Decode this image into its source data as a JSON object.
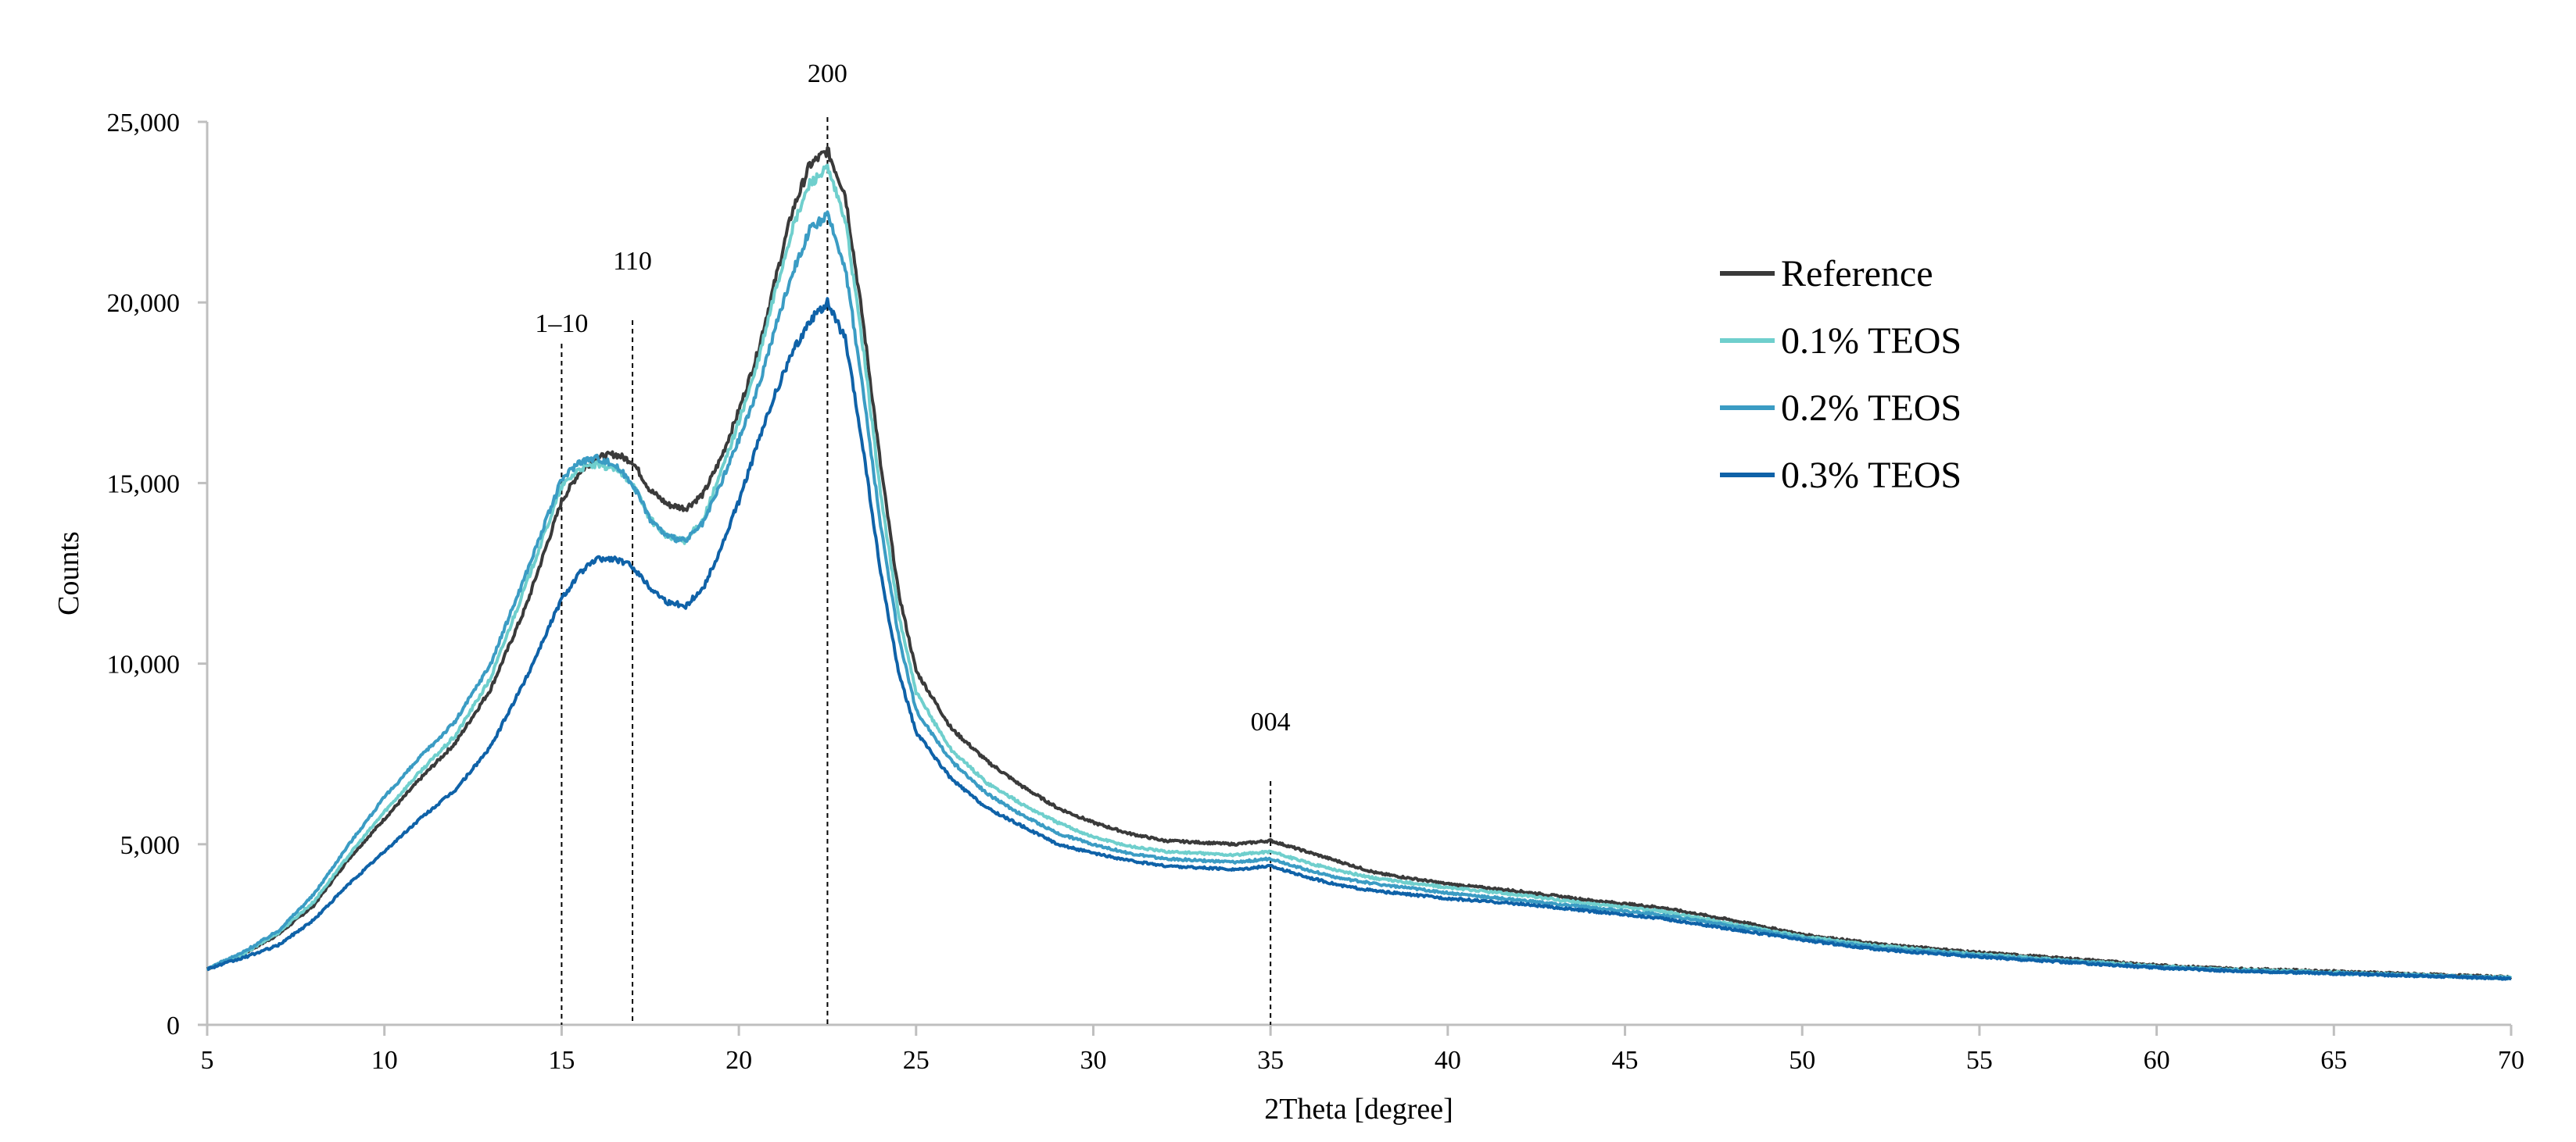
{
  "chart_data": {
    "type": "line",
    "title": "",
    "xlabel": "2Theta [degree]",
    "ylabel": "Counts",
    "xlim": [
      5,
      70
    ],
    "ylim": [
      0,
      25000
    ],
    "x_ticks": [
      5,
      10,
      15,
      20,
      25,
      30,
      35,
      40,
      45,
      50,
      55,
      60,
      65,
      70
    ],
    "x_tick_labels": [
      "5",
      "10",
      "15",
      "20",
      "25",
      "30",
      "35",
      "40",
      "45",
      "50",
      "55",
      "60",
      "65",
      "70"
    ],
    "y_ticks": [
      0,
      5000,
      10000,
      15000,
      20000,
      25000
    ],
    "y_tick_labels": [
      "0",
      "5,000",
      "10,000",
      "15,000",
      "20,000",
      "25,000"
    ],
    "grid": false,
    "legend_position": "top-right",
    "annotations": [
      {
        "label": "1–10",
        "x": 15
      },
      {
        "label": "110",
        "x": 17
      },
      {
        "label": "200",
        "x": 22.5
      },
      {
        "label": "004",
        "x": 35
      }
    ],
    "series": [
      {
        "name": "Reference",
        "color": "#3a3a3a",
        "points": [
          [
            5,
            1550
          ],
          [
            6,
            1950
          ],
          [
            7,
            2500
          ],
          [
            8,
            3300
          ],
          [
            9,
            4600
          ],
          [
            10,
            5700
          ],
          [
            11,
            6800
          ],
          [
            12,
            7800
          ],
          [
            13,
            9300
          ],
          [
            14,
            11600
          ],
          [
            15,
            14500
          ],
          [
            15.5,
            15300
          ],
          [
            16,
            15700
          ],
          [
            16.5,
            15800
          ],
          [
            17,
            15600
          ],
          [
            17.5,
            14800
          ],
          [
            18,
            14400
          ],
          [
            18.5,
            14300
          ],
          [
            19,
            14700
          ],
          [
            19.5,
            15700
          ],
          [
            20,
            17000
          ],
          [
            20.5,
            18500
          ],
          [
            21,
            20500
          ],
          [
            21.5,
            22500
          ],
          [
            22,
            23800
          ],
          [
            22.5,
            24200
          ],
          [
            23,
            23000
          ],
          [
            23.5,
            19500
          ],
          [
            24,
            15500
          ],
          [
            24.5,
            12000
          ],
          [
            25,
            9800
          ],
          [
            26,
            8200
          ],
          [
            27,
            7300
          ],
          [
            28,
            6600
          ],
          [
            29,
            6000
          ],
          [
            30,
            5600
          ],
          [
            31,
            5300
          ],
          [
            32,
            5100
          ],
          [
            33,
            5050
          ],
          [
            34,
            5000
          ],
          [
            35,
            5100
          ],
          [
            36,
            4800
          ],
          [
            37,
            4500
          ],
          [
            38,
            4200
          ],
          [
            40,
            3900
          ],
          [
            42,
            3700
          ],
          [
            44,
            3450
          ],
          [
            46,
            3250
          ],
          [
            48,
            2900
          ],
          [
            50,
            2500
          ],
          [
            52,
            2250
          ],
          [
            55,
            2000
          ],
          [
            58,
            1800
          ],
          [
            60,
            1650
          ],
          [
            62,
            1560
          ],
          [
            65,
            1480
          ],
          [
            68,
            1380
          ],
          [
            70,
            1320
          ]
        ]
      },
      {
        "name": "0.1% TEOS",
        "color": "#6fcfcd",
        "points": [
          [
            5,
            1550
          ],
          [
            6,
            1950
          ],
          [
            7,
            2550
          ],
          [
            8,
            3400
          ],
          [
            9,
            4700
          ],
          [
            10,
            5900
          ],
          [
            11,
            7000
          ],
          [
            12,
            8000
          ],
          [
            13,
            9600
          ],
          [
            14,
            12200
          ],
          [
            15,
            14900
          ],
          [
            15.5,
            15400
          ],
          [
            16,
            15500
          ],
          [
            16.5,
            15400
          ],
          [
            17,
            15000
          ],
          [
            17.5,
            14000
          ],
          [
            18,
            13500
          ],
          [
            18.5,
            13400
          ],
          [
            19,
            14000
          ],
          [
            19.5,
            15300
          ],
          [
            20,
            16700
          ],
          [
            20.5,
            18200
          ],
          [
            21,
            20200
          ],
          [
            21.5,
            22000
          ],
          [
            22,
            23300
          ],
          [
            22.5,
            23700
          ],
          [
            23,
            22300
          ],
          [
            23.5,
            18800
          ],
          [
            24,
            14700
          ],
          [
            24.5,
            11400
          ],
          [
            25,
            9200
          ],
          [
            26,
            7600
          ],
          [
            27,
            6700
          ],
          [
            28,
            6100
          ],
          [
            29,
            5600
          ],
          [
            30,
            5200
          ],
          [
            31,
            4950
          ],
          [
            32,
            4800
          ],
          [
            33,
            4750
          ],
          [
            34,
            4700
          ],
          [
            35,
            4800
          ],
          [
            36,
            4500
          ],
          [
            37,
            4250
          ],
          [
            38,
            4050
          ],
          [
            40,
            3800
          ],
          [
            42,
            3600
          ],
          [
            44,
            3350
          ],
          [
            46,
            3150
          ],
          [
            48,
            2800
          ],
          [
            50,
            2450
          ],
          [
            52,
            2200
          ],
          [
            55,
            1950
          ],
          [
            58,
            1750
          ],
          [
            60,
            1620
          ],
          [
            62,
            1530
          ],
          [
            65,
            1450
          ],
          [
            68,
            1360
          ],
          [
            70,
            1300
          ]
        ]
      },
      {
        "name": "0.2% TEOS",
        "color": "#3b9cc4",
        "points": [
          [
            5,
            1550
          ],
          [
            6,
            2000
          ],
          [
            7,
            2600
          ],
          [
            8,
            3600
          ],
          [
            9,
            5000
          ],
          [
            10,
            6300
          ],
          [
            11,
            7400
          ],
          [
            12,
            8400
          ],
          [
            13,
            10000
          ],
          [
            14,
            12500
          ],
          [
            15,
            15100
          ],
          [
            15.5,
            15600
          ],
          [
            16,
            15700
          ],
          [
            16.5,
            15500
          ],
          [
            17,
            15000
          ],
          [
            17.5,
            14000
          ],
          [
            18,
            13500
          ],
          [
            18.5,
            13400
          ],
          [
            19,
            13900
          ],
          [
            19.5,
            15000
          ],
          [
            20,
            16200
          ],
          [
            20.5,
            17500
          ],
          [
            21,
            19200
          ],
          [
            21.5,
            20800
          ],
          [
            22,
            22000
          ],
          [
            22.5,
            22400
          ],
          [
            23,
            21000
          ],
          [
            23.5,
            17600
          ],
          [
            24,
            13800
          ],
          [
            24.5,
            10800
          ],
          [
            25,
            8700
          ],
          [
            26,
            7300
          ],
          [
            27,
            6400
          ],
          [
            28,
            5800
          ],
          [
            29,
            5300
          ],
          [
            30,
            5000
          ],
          [
            31,
            4750
          ],
          [
            32,
            4600
          ],
          [
            33,
            4550
          ],
          [
            34,
            4500
          ],
          [
            35,
            4600
          ],
          [
            36,
            4300
          ],
          [
            37,
            4050
          ],
          [
            38,
            3900
          ],
          [
            40,
            3650
          ],
          [
            42,
            3450
          ],
          [
            44,
            3250
          ],
          [
            46,
            3050
          ],
          [
            48,
            2750
          ],
          [
            50,
            2400
          ],
          [
            52,
            2150
          ],
          [
            55,
            1920
          ],
          [
            58,
            1730
          ],
          [
            60,
            1600
          ],
          [
            62,
            1510
          ],
          [
            65,
            1430
          ],
          [
            68,
            1350
          ],
          [
            70,
            1290
          ]
        ]
      },
      {
        "name": "0.3% TEOS",
        "color": "#0f62a8",
        "points": [
          [
            5,
            1550
          ],
          [
            6,
            1850
          ],
          [
            7,
            2200
          ],
          [
            8,
            2900
          ],
          [
            9,
            3900
          ],
          [
            10,
            4800
          ],
          [
            11,
            5700
          ],
          [
            12,
            6500
          ],
          [
            13,
            7700
          ],
          [
            14,
            9600
          ],
          [
            15,
            11800
          ],
          [
            15.5,
            12500
          ],
          [
            16,
            12900
          ],
          [
            16.5,
            12900
          ],
          [
            17,
            12700
          ],
          [
            17.5,
            12100
          ],
          [
            18,
            11700
          ],
          [
            18.5,
            11600
          ],
          [
            19,
            12100
          ],
          [
            19.5,
            13200
          ],
          [
            20,
            14500
          ],
          [
            20.5,
            16000
          ],
          [
            21,
            17400
          ],
          [
            21.5,
            18600
          ],
          [
            22,
            19500
          ],
          [
            22.5,
            20000
          ],
          [
            23,
            19000
          ],
          [
            23.5,
            16000
          ],
          [
            24,
            12500
          ],
          [
            24.5,
            9800
          ],
          [
            25,
            8100
          ],
          [
            26,
            6800
          ],
          [
            27,
            6000
          ],
          [
            28,
            5500
          ],
          [
            29,
            5000
          ],
          [
            30,
            4750
          ],
          [
            31,
            4550
          ],
          [
            32,
            4400
          ],
          [
            33,
            4350
          ],
          [
            34,
            4300
          ],
          [
            35,
            4400
          ],
          [
            36,
            4100
          ],
          [
            37,
            3850
          ],
          [
            38,
            3700
          ],
          [
            40,
            3500
          ],
          [
            42,
            3350
          ],
          [
            44,
            3150
          ],
          [
            46,
            2950
          ],
          [
            48,
            2650
          ],
          [
            50,
            2350
          ],
          [
            52,
            2100
          ],
          [
            55,
            1880
          ],
          [
            58,
            1700
          ],
          [
            60,
            1580
          ],
          [
            62,
            1500
          ],
          [
            65,
            1420
          ],
          [
            68,
            1340
          ],
          [
            70,
            1280
          ]
        ]
      }
    ]
  }
}
